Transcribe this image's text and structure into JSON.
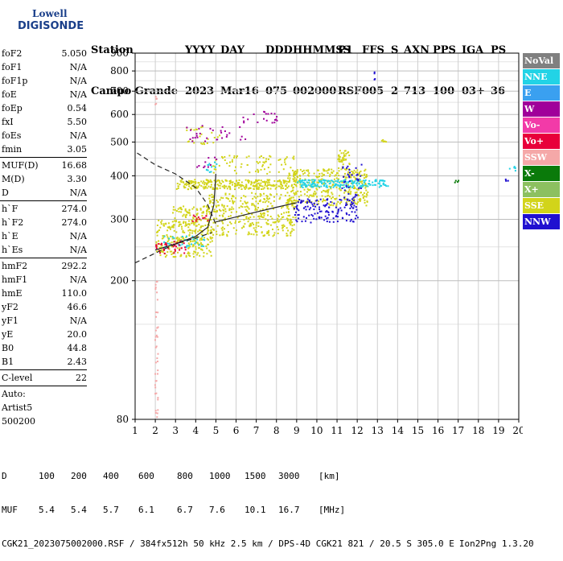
{
  "logo": {
    "line1": "Lowell",
    "line2": "DIGISONDE"
  },
  "header": {
    "labels": [
      "Station",
      "YYYY",
      "DAY",
      "DDD",
      "HHMMSS",
      "P1",
      "FFS",
      "S",
      "AXN",
      "PPS",
      "IGA",
      "PS"
    ],
    "values": [
      "Campo Grande",
      "2023",
      "Mar16",
      "075",
      "002000",
      "RSF",
      "005",
      "2",
      "713",
      "100",
      "03+",
      "36"
    ]
  },
  "params": {
    "group1": [
      {
        "name": "foF2",
        "value": "5.050"
      },
      {
        "name": "foF1",
        "value": "N/A"
      },
      {
        "name": "foF1p",
        "value": "N/A"
      },
      {
        "name": "foE",
        "value": "N/A"
      },
      {
        "name": "foEp",
        "value": "0.54"
      },
      {
        "name": "fxI",
        "value": "5.50"
      },
      {
        "name": "foEs",
        "value": "N/A"
      },
      {
        "name": "fmin",
        "value": "3.05"
      }
    ],
    "group2": [
      {
        "name": "MUF(D)",
        "value": "16.68"
      },
      {
        "name": "M(D)",
        "value": "3.30"
      },
      {
        "name": "D",
        "value": "N/A"
      }
    ],
    "group3": [
      {
        "name": "h`F",
        "value": "274.0"
      },
      {
        "name": "h`F2",
        "value": "274.0"
      },
      {
        "name": "h`E",
        "value": "N/A"
      },
      {
        "name": "h`Es",
        "value": "N/A"
      }
    ],
    "group4": [
      {
        "name": "hmF2",
        "value": "292.2"
      },
      {
        "name": "hmF1",
        "value": "N/A"
      },
      {
        "name": "hmE",
        "value": "110.0"
      },
      {
        "name": "yF2",
        "value": "46.6"
      },
      {
        "name": "yF1",
        "value": "N/A"
      },
      {
        "name": "yE",
        "value": "20.0"
      },
      {
        "name": "B0",
        "value": "44.8"
      },
      {
        "name": "B1",
        "value": "2.43"
      }
    ],
    "group5": [
      {
        "name": "C-level",
        "value": "22"
      }
    ],
    "auto": [
      "Auto:",
      "Artist5",
      "500200"
    ]
  },
  "legend": [
    {
      "label": "NoVal",
      "color": "#808080"
    },
    {
      "label": "NNE",
      "color": "#22d3e6"
    },
    {
      "label": "E",
      "color": "#3aa0f0"
    },
    {
      "label": "W",
      "color": "#a0009a"
    },
    {
      "label": "Vo-",
      "color": "#f23aa8"
    },
    {
      "label": "Vo+",
      "color": "#e8003a"
    },
    {
      "label": "SSW",
      "color": "#f5a8a8"
    },
    {
      "label": "X-",
      "color": "#0a7a0a"
    },
    {
      "label": "X+",
      "color": "#8cc060"
    },
    {
      "label": "SSE",
      "color": "#d2d41a"
    },
    {
      "label": "NNW",
      "color": "#2010d0"
    }
  ],
  "chart_data": {
    "type": "scatter",
    "title": "",
    "xlabel": "",
    "ylabel": "",
    "xlim": [
      1,
      20
    ],
    "ylim": [
      80,
      900
    ],
    "yscale": "log",
    "grid": true,
    "x_ticks": [
      1,
      2,
      3,
      4,
      5,
      6,
      7,
      8,
      9,
      10,
      11,
      12,
      13,
      14,
      15,
      16,
      17,
      18,
      19,
      20
    ],
    "y_ticks": [
      80,
      200,
      300,
      400,
      500,
      600,
      700,
      800,
      900
    ],
    "series": [
      {
        "name": "SSE",
        "color": "#d2d41a",
        "clusters": [
          {
            "x": [
              2.0,
              4.8
            ],
            "y": [
              235,
              300
            ],
            "density": 260
          },
          {
            "x": [
              4.5,
              9.0
            ],
            "y": [
              270,
              360
            ],
            "density": 380
          },
          {
            "x": [
              3.0,
              8.5
            ],
            "y": [
              368,
              392
            ],
            "density": 280
          },
          {
            "x": [
              8.5,
              12.5
            ],
            "y": [
              330,
              420
            ],
            "density": 360
          },
          {
            "x": [
              2.8,
              4.6
            ],
            "y": [
              300,
              330
            ],
            "density": 60
          },
          {
            "x": [
              4.8,
              9.0
            ],
            "y": [
              405,
              460
            ],
            "density": 80
          },
          {
            "x": [
              11.0,
              11.6
            ],
            "y": [
              420,
              475
            ],
            "density": 40
          },
          {
            "x": [
              3.2,
              5.2
            ],
            "y": [
              495,
              560
            ],
            "density": 25
          },
          {
            "x": [
              13.0,
              13.4
            ],
            "y": [
              500,
              510
            ],
            "density": 6
          }
        ]
      },
      {
        "name": "NNE",
        "color": "#22d3e6",
        "clusters": [
          {
            "x": [
              9.0,
              13.5
            ],
            "y": [
              372,
              392
            ],
            "density": 180
          },
          {
            "x": [
              2.2,
              4.5
            ],
            "y": [
              250,
              270
            ],
            "density": 40
          },
          {
            "x": [
              4.5,
              5.0
            ],
            "y": [
              410,
              440
            ],
            "density": 12
          },
          {
            "x": [
              19.4,
              19.8
            ],
            "y": [
              415,
              430
            ],
            "density": 6
          }
        ]
      },
      {
        "name": "NNW",
        "color": "#2010d0",
        "clusters": [
          {
            "x": [
              8.8,
              12.0
            ],
            "y": [
              295,
              345
            ],
            "density": 140
          },
          {
            "x": [
              11.2,
              12.2
            ],
            "y": [
              330,
              440
            ],
            "density": 40
          },
          {
            "x": [
              12.8,
              12.9
            ],
            "y": [
              750,
              800
            ],
            "density": 4
          },
          {
            "x": [
              19.3,
              19.6
            ],
            "y": [
              385,
              395
            ],
            "density": 4
          }
        ]
      },
      {
        "name": "W",
        "color": "#a0009a",
        "clusters": [
          {
            "x": [
              3.5,
              6.5
            ],
            "y": [
              505,
              560
            ],
            "density": 30
          },
          {
            "x": [
              6.3,
              8.0
            ],
            "y": [
              570,
              615
            ],
            "density": 20
          },
          {
            "x": [
              4.0,
              5.0
            ],
            "y": [
              420,
              460
            ],
            "density": 10
          }
        ]
      },
      {
        "name": "Vo+",
        "color": "#e8003a",
        "clusters": [
          {
            "x": [
              2.0,
              3.5
            ],
            "y": [
              240,
              262
            ],
            "density": 40
          },
          {
            "x": [
              3.8,
              4.6
            ],
            "y": [
              295,
              310
            ],
            "density": 12
          }
        ]
      },
      {
        "name": "SSW",
        "color": "#f5a8a8",
        "clusters": [
          {
            "x": [
              1.95,
              2.1
            ],
            "y": [
              80,
              200
            ],
            "density": 40
          },
          {
            "x": [
              1.95,
              2.05
            ],
            "y": [
              640,
              680
            ],
            "density": 5
          }
        ]
      },
      {
        "name": "X-",
        "color": "#0a7a0a",
        "clusters": [
          {
            "x": [
              16.8,
              17.0
            ],
            "y": [
              383,
              392
            ],
            "density": 4
          }
        ]
      }
    ],
    "curves": [
      {
        "name": "trace-profile",
        "style": "solid",
        "x": [
          2.0,
          3.0,
          4.0,
          4.6,
          4.9,
          5.0
        ],
        "y": [
          245,
          255,
          268,
          285,
          330,
          405
        ]
      },
      {
        "name": "trace-o",
        "style": "solid",
        "x": [
          5.0,
          6.5,
          8.0,
          9.0
        ],
        "y": [
          295,
          310,
          325,
          335
        ]
      },
      {
        "name": "model-profile",
        "style": "dashed",
        "x": [
          1.1,
          2.0,
          3.0,
          4.0,
          4.6,
          5.0
        ],
        "y": [
          465,
          430,
          405,
          370,
          330,
          290
        ]
      },
      {
        "name": "lower-dashed",
        "style": "dashed",
        "x": [
          1.0,
          2.0,
          3.0,
          4.0,
          4.8
        ],
        "y": [
          225,
          240,
          255,
          265,
          275
        ]
      }
    ]
  },
  "footer": {
    "d_label": "D",
    "d_values": [
      "100",
      "200",
      "400",
      "600",
      "800",
      "1000",
      "1500",
      "3000",
      "[km]"
    ],
    "muf_label": "MUF",
    "muf_values": [
      "5.4",
      "5.4",
      "5.7",
      "6.1",
      "6.7",
      "7.6",
      "10.1",
      "16.7",
      "[MHz]"
    ],
    "file_line": "CGK21_2023075002000.RSF / 384fx512h 50 kHz 2.5 km / DPS-4D CGK21 821 / 20.5 S 305.0 E",
    "version": "Ion2Png 1.3.20"
  }
}
